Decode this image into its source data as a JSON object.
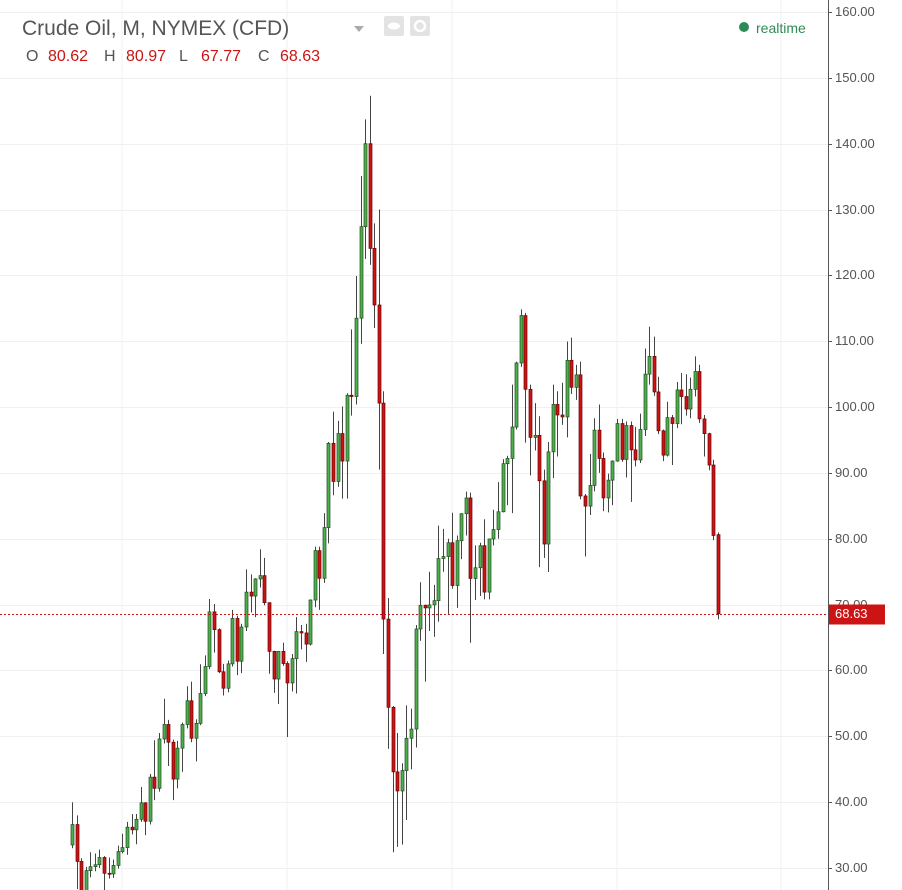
{
  "chart_data": {
    "type": "candlestick",
    "title": "Crude Oil, M, NYMEX (CFD)",
    "ohlc_labels": [
      "O",
      "H",
      "L",
      "C"
    ],
    "status": "realtime",
    "open": [
      33.5,
      36.6,
      31.0,
      25.8,
      29.6,
      30.2,
      30.5,
      31.6,
      29.2,
      29.1,
      30.4,
      32.5,
      33.1,
      36.2,
      35.8,
      37.4,
      39.9,
      37.1,
      43.8,
      42.1,
      49.6,
      51.8,
      49.1,
      43.5,
      48.2,
      51.8,
      55.4,
      49.7,
      51.97,
      56.5,
      60.6,
      68.9,
      66.2,
      59.8,
      57.3,
      61.0,
      67.9,
      61.4,
      66.6,
      71.9,
      71.3,
      73.9,
      74.4,
      70.3,
      62.9,
      58.7,
      62.9,
      61.05,
      58.1,
      61.8,
      65.9,
      65.7,
      64.0,
      70.7,
      78.2,
      74.0,
      81.7,
      94.5,
      88.7,
      95.98,
      91.8,
      101.8,
      101.6,
      113.5,
      127.4,
      140.0,
      124.1,
      115.5,
      100.6,
      67.8,
      54.4,
      44.6,
      41.7,
      44.8,
      49.7,
      51.1,
      66.3,
      69.9,
      69.5,
      69.96,
      70.6,
      77.0,
      77.3,
      79.4,
      72.9,
      79.7,
      83.8,
      86.2,
      73.97,
      75.6,
      78.95,
      71.9,
      79.97,
      81.4,
      84.1,
      91.4,
      92.2,
      96.97,
      106.7,
      113.9,
      102.7,
      95.4,
      95.7,
      88.8,
      79.2,
      93.2,
      100.4,
      98.8,
      98.5,
      107.1,
      103.0,
      104.9,
      86.5,
      84.96,
      88.1,
      96.5,
      92.2,
      86.2,
      88.9,
      91.8,
      97.5,
      92.05,
      97.2,
      93.5,
      91.97,
      96.6,
      105.0,
      107.7,
      102.3,
      96.4,
      92.7,
      98.4,
      97.5,
      102.6,
      101.6,
      99.7,
      102.7,
      105.4,
      98.2,
      95.96,
      91.2,
      80.62
    ],
    "high": [
      39.99,
      38.0,
      31.5,
      30.2,
      32.4,
      32.2,
      32.8,
      31.8,
      31.6,
      31.3,
      33.4,
      35.2,
      37.0,
      38.2,
      38.2,
      42.3,
      40.0,
      44.3,
      49.4,
      50.5,
      55.7,
      52.5,
      49.5,
      49.3,
      52.1,
      57.6,
      58.3,
      52.6,
      60.95,
      62.3,
      70.85,
      70.1,
      66.4,
      61.0,
      61.5,
      69.2,
      68.3,
      67.1,
      75.35,
      74.6,
      74.0,
      78.4,
      77.1,
      70.3,
      63.0,
      62.9,
      64.2,
      61.4,
      62.5,
      68.1,
      66.9,
      67.1,
      70.8,
      78.8,
      78.8,
      83.9,
      94.7,
      99.3,
      97.9,
      100.1,
      102.1,
      111.8,
      119.9,
      135.1,
      143.7,
      147.27,
      127.9,
      130.0,
      102.4,
      71.0,
      54.6,
      50.5,
      45.9,
      54.7,
      54.2,
      66.9,
      73.4,
      70.0,
      75.0,
      73.0,
      82.0,
      81.5,
      80.0,
      83.95,
      80.5,
      83.9,
      87.15,
      87.0,
      79.0,
      79.4,
      82.97,
      80.0,
      84.4,
      88.6,
      92.1,
      92.6,
      103.4,
      106.9,
      114.83,
      114.3,
      103.4,
      100.6,
      98.6,
      90.5,
      94.7,
      103.4,
      102.4,
      103.7,
      109.95,
      110.55,
      106.4,
      106.9,
      86.8,
      92.9,
      98.3,
      100.4,
      93.1,
      89.9,
      91.9,
      98.2,
      98.2,
      97.8,
      97.8,
      97.0,
      99.0,
      108.9,
      112.2,
      110.7,
      104.6,
      96.6,
      100.8,
      98.8,
      103.8,
      105.2,
      104.99,
      104.5,
      107.7,
      106.4,
      98.8,
      96.1,
      92.0,
      80.97
    ],
    "low": [
      33.0,
      26.8,
      24.8,
      25.1,
      28.6,
      29.5,
      30.0,
      25.4,
      28.4,
      28.5,
      29.9,
      32.2,
      32.0,
      35.1,
      33.6,
      37.0,
      35.0,
      36.6,
      40.3,
      41.6,
      48.9,
      45.5,
      40.3,
      42.1,
      44.6,
      51.2,
      49.1,
      46.2,
      51.7,
      56.1,
      60.2,
      62.7,
      59.6,
      56.2,
      56.7,
      60.6,
      59.3,
      59.6,
      66.0,
      68.8,
      68.1,
      72.6,
      69.9,
      59.5,
      56.6,
      54.9,
      60.7,
      49.9,
      56.8,
      56.5,
      63.2,
      61.3,
      63.8,
      69.6,
      69.2,
      73.3,
      79.3,
      86.6,
      87.9,
      86.1,
      86.1,
      98.7,
      100.4,
      109.6,
      122.5,
      121.6,
      112.0,
      90.5,
      62.5,
      48.1,
      32.4,
      33.2,
      33.55,
      37.3,
      45.0,
      48.3,
      64.5,
      58.3,
      66.0,
      65.1,
      67.4,
      75.0,
      68.6,
      72.4,
      69.5,
      76.9,
      80.5,
      64.2,
      70.7,
      71.3,
      70.8,
      70.8,
      79.0,
      80.0,
      84.0,
      85.1,
      83.9,
      96.6,
      106.1,
      94.6,
      89.6,
      93.4,
      75.7,
      77.1,
      74.95,
      89.2,
      92.5,
      97.3,
      95.4,
      102.0,
      101.1,
      86.0,
      77.3,
      83.6,
      87.2,
      90.0,
      84.2,
      84.0,
      85.1,
      91.7,
      91.7,
      89.3,
      85.6,
      91.0,
      91.5,
      95.6,
      103.4,
      101.7,
      95.9,
      91.8,
      92.5,
      91.2,
      96.8,
      97.4,
      98.7,
      98.3,
      101.6,
      97.6,
      92.5,
      90.4,
      79.8,
      67.77
    ],
    "close": [
      36.6,
      31.0,
      25.8,
      29.6,
      30.2,
      30.5,
      31.6,
      29.2,
      29.1,
      30.4,
      32.5,
      33.1,
      36.2,
      35.8,
      37.4,
      39.9,
      37.1,
      43.8,
      42.1,
      49.6,
      51.8,
      49.1,
      43.5,
      48.2,
      51.8,
      55.4,
      49.7,
      51.97,
      56.5,
      60.6,
      68.9,
      66.2,
      59.8,
      57.3,
      61.0,
      67.9,
      61.4,
      66.6,
      71.9,
      71.3,
      73.9,
      74.4,
      70.3,
      62.9,
      58.7,
      62.9,
      61.05,
      58.1,
      61.8,
      65.9,
      65.7,
      64.0,
      70.7,
      78.2,
      74.0,
      81.7,
      94.5,
      88.7,
      95.98,
      91.8,
      101.8,
      101.6,
      113.5,
      127.4,
      140.0,
      124.1,
      115.5,
      100.6,
      67.8,
      54.4,
      44.6,
      41.7,
      44.8,
      49.7,
      51.1,
      66.3,
      69.9,
      69.5,
      69.96,
      70.6,
      77.0,
      77.3,
      79.4,
      72.9,
      79.7,
      83.8,
      86.2,
      73.97,
      75.6,
      78.95,
      71.9,
      79.97,
      81.4,
      84.1,
      91.4,
      92.2,
      96.97,
      106.7,
      113.9,
      102.7,
      95.4,
      95.7,
      88.8,
      79.2,
      93.2,
      100.4,
      98.8,
      98.5,
      107.1,
      103.0,
      104.9,
      86.5,
      84.96,
      88.1,
      96.5,
      92.2,
      86.2,
      88.9,
      91.8,
      97.5,
      92.05,
      97.2,
      93.5,
      91.97,
      96.6,
      105.0,
      107.7,
      102.3,
      96.4,
      92.7,
      98.4,
      97.5,
      102.6,
      101.6,
      99.7,
      102.7,
      105.4,
      98.2,
      95.96,
      91.2,
      80.5,
      68.63
    ],
    "up_color": "#4cae4c",
    "down_color": "#cc1414",
    "ylim": [
      26.66,
      161.82
    ],
    "yticks": [
      {
        "value": 30,
        "label": "30.00"
      },
      {
        "value": 40,
        "label": "40.00"
      },
      {
        "value": 50,
        "label": "50.00"
      },
      {
        "value": 60,
        "label": "60.00"
      },
      {
        "value": 70,
        "label": "70.00"
      },
      {
        "value": 80,
        "label": "80.00"
      },
      {
        "value": 90,
        "label": "90.00"
      },
      {
        "value": 100,
        "label": "100.00"
      },
      {
        "value": 110,
        "label": "110.00"
      },
      {
        "value": 120,
        "label": "120.00"
      },
      {
        "value": 130,
        "label": "130.00"
      },
      {
        "value": 140,
        "label": "140.00"
      },
      {
        "value": 150,
        "label": "150.00"
      },
      {
        "value": 160,
        "label": "160.00"
      }
    ],
    "grid": true
  }
}
